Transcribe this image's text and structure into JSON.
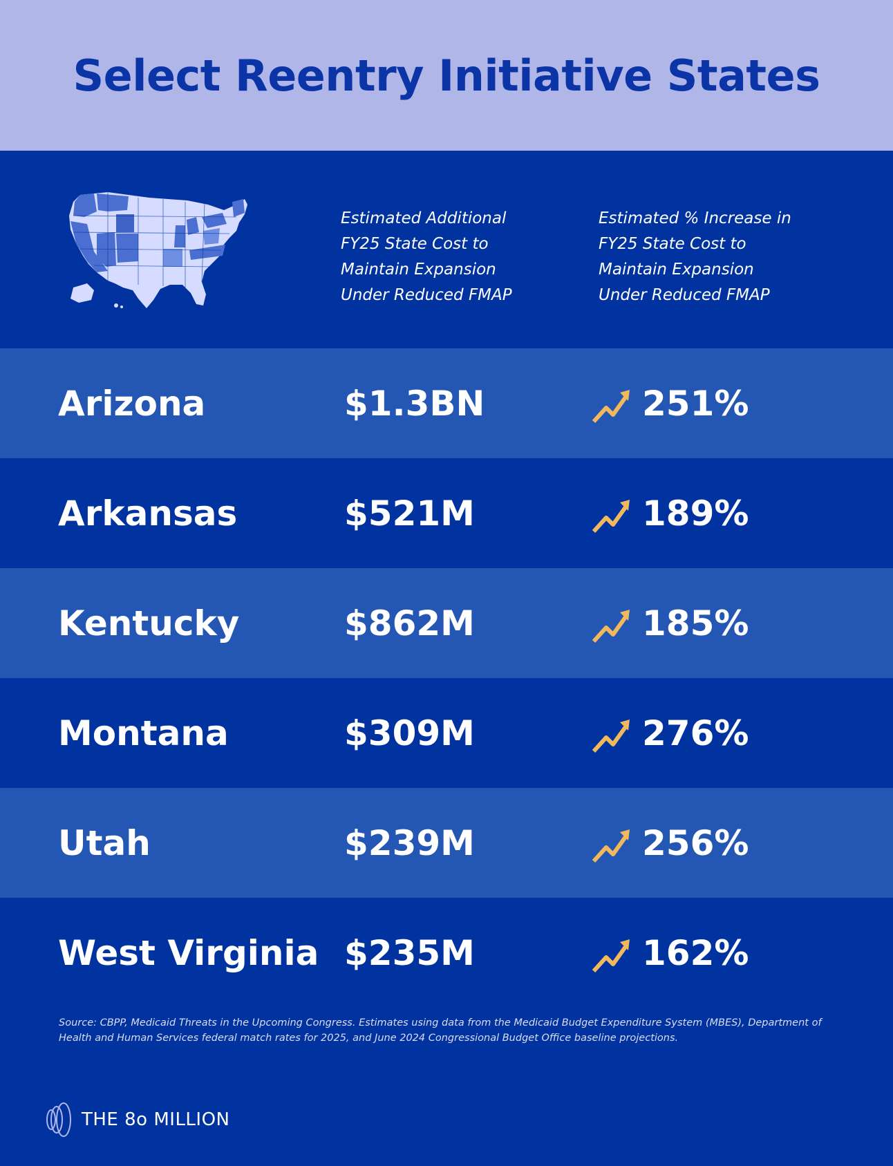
{
  "title": "Select Reentry Initiative States",
  "columns": {
    "cost_header": "Estimated Additional\nFY25 State Cost to\nMaintain Expansion\nUnder Reduced FMAP",
    "pct_header": "Estimated % Increase in\nFY25 State Cost to\nMaintain Expansion\nUnder Reduced FMAP"
  },
  "rows": [
    {
      "state": "Arizona",
      "cost": "$1.3BN",
      "pct": "251%"
    },
    {
      "state": "Arkansas",
      "cost": "$521M",
      "pct": "189%"
    },
    {
      "state": "Kentucky",
      "cost": "$862M",
      "pct": "185%"
    },
    {
      "state": "Montana",
      "cost": "$309M",
      "pct": "276%"
    },
    {
      "state": "Utah",
      "cost": "$239M",
      "pct": "256%"
    },
    {
      "state": "West Virginia",
      "cost": "$235M",
      "pct": "162%"
    }
  ],
  "source": "Source: CBPP, Medicaid Threats in the Upcoming Congress. Estimates using data from the Medicaid Budget Expenditure System (MBES), Department of Health and Human Services federal match rates for 2025, and June 2024 Congressional Budget Office baseline projections.",
  "brand": "THE 8o MILLION",
  "icons": {
    "row_icon": "trend-up-arrow-icon",
    "map": "us-map-icon",
    "logo": "brand-logo-icon"
  },
  "colors": {
    "title_band": "#b0b6e8",
    "title_text": "#0b35a6",
    "dark_blue": "#0032a0",
    "row_light": "#2456b4",
    "icon_gold": "#f1b95c"
  }
}
